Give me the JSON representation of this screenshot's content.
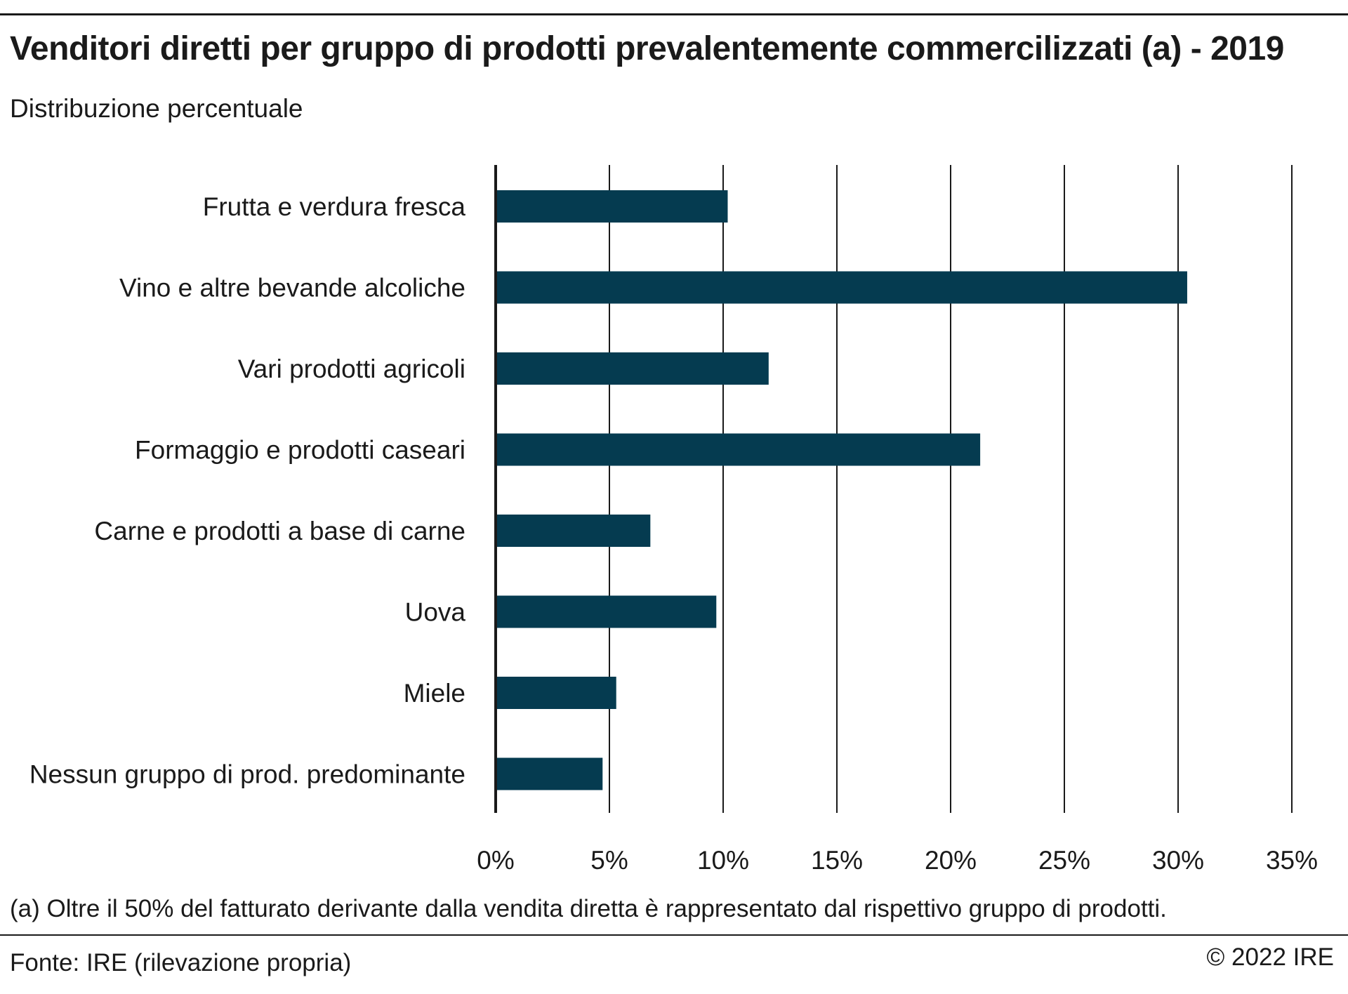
{
  "title": "Venditori diretti per gruppo di prodotti prevalentemente commercilizzati (a) - 2019",
  "subtitle": "Distribuzione percentuale",
  "footnote": "(a) Oltre il 50% del fatturato derivante dalla vendita diretta è rappresentato dal rispettivo gruppo di prodotti.",
  "source": "Fonte: IRE (rilevazione propria)",
  "copyright": "© 2022 IRE",
  "colors": {
    "bar": "#053b50",
    "grid": "#1a1a1a",
    "text": "#1a1a1a"
  },
  "chart_data": {
    "type": "bar",
    "orientation": "horizontal",
    "categories": [
      "Frutta e verdura fresca",
      "Vino e altre bevande alcoliche",
      "Vari prodotti agricoli",
      "Formaggio e prodotti caseari",
      "Carne e prodotti a base di carne",
      "Uova",
      "Miele",
      "Nessun gruppo di prod. predominante"
    ],
    "values": [
      10.2,
      30.4,
      12.0,
      21.3,
      6.8,
      9.7,
      5.3,
      4.7
    ],
    "xlim": [
      0,
      35
    ],
    "xticks": [
      0,
      5,
      10,
      15,
      20,
      25,
      30,
      35
    ],
    "xtick_labels": [
      "0%",
      "5%",
      "10%",
      "15%",
      "20%",
      "25%",
      "30%",
      "35%"
    ],
    "grid": "vertical",
    "legend": "none"
  }
}
